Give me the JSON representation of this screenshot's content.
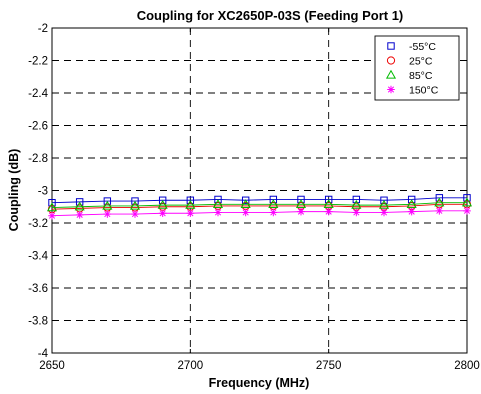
{
  "chart_data": {
    "type": "line",
    "title": "Coupling for XC2650P-03S (Feeding Port 1)",
    "xlabel": "Frequency (MHz)",
    "ylabel": "Coupling (dB)",
    "xlim": [
      2650,
      2800
    ],
    "ylim": [
      -4,
      -2
    ],
    "xticks": [
      2650,
      2700,
      2750,
      2800
    ],
    "yticks": [
      -4,
      -3.8,
      -3.6,
      -3.4,
      -3.2,
      -3,
      -2.8,
      -2.6,
      -2.4,
      -2.2,
      -2
    ],
    "grid": true,
    "grid_style": "dashed",
    "legend_position": "top-right",
    "x": [
      2650,
      2660,
      2670,
      2680,
      2690,
      2700,
      2710,
      2720,
      2730,
      2740,
      2750,
      2760,
      2770,
      2780,
      2790,
      2800
    ],
    "series": [
      {
        "name": "-55°C",
        "color": "#0000cc",
        "marker": "square",
        "values": [
          -3.075,
          -3.07,
          -3.065,
          -3.065,
          -3.06,
          -3.06,
          -3.055,
          -3.06,
          -3.055,
          -3.055,
          -3.055,
          -3.055,
          -3.06,
          -3.055,
          -3.045,
          -3.045
        ]
      },
      {
        "name": "25°C",
        "color": "#ee0000",
        "marker": "circle",
        "values": [
          -3.115,
          -3.11,
          -3.105,
          -3.105,
          -3.1,
          -3.1,
          -3.095,
          -3.095,
          -3.095,
          -3.095,
          -3.095,
          -3.1,
          -3.1,
          -3.095,
          -3.085,
          -3.085
        ]
      },
      {
        "name": "85°C",
        "color": "#00bb00",
        "marker": "triangle",
        "values": [
          -3.105,
          -3.1,
          -3.095,
          -3.095,
          -3.09,
          -3.09,
          -3.085,
          -3.085,
          -3.085,
          -3.085,
          -3.085,
          -3.09,
          -3.09,
          -3.085,
          -3.075,
          -3.075
        ]
      },
      {
        "name": "150°C",
        "color": "#ff00ff",
        "marker": "asterisk",
        "values": [
          -3.155,
          -3.15,
          -3.145,
          -3.145,
          -3.14,
          -3.14,
          -3.135,
          -3.135,
          -3.135,
          -3.13,
          -3.13,
          -3.135,
          -3.135,
          -3.13,
          -3.125,
          -3.125
        ]
      }
    ]
  }
}
